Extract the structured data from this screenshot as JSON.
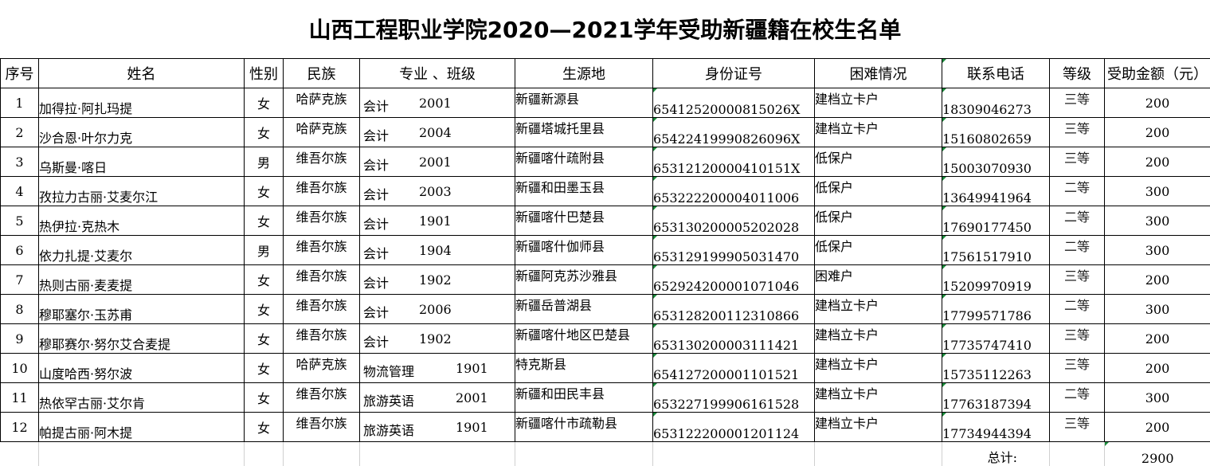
{
  "title": "山西工程职业学院2020—2021学年受助新疆籍在校生名单",
  "headers": {
    "seq": "序号",
    "name": "姓名",
    "gender": "性别",
    "ethnic": "民族",
    "major": "专业 、班级",
    "origin": "生源地",
    "id": "身份证号",
    "difficulty": "困难情况",
    "phone": "联系电话",
    "grade": "等级",
    "amount": "受助金额（元）"
  },
  "rows": [
    {
      "seq": "1",
      "name": "加得拉·阿扎玛提",
      "gender": "女",
      "ethnic": "哈萨克族",
      "major": "会计",
      "cls": "2001",
      "origin": "新疆新源县",
      "id": "654125200008150​26X",
      "difficulty": "建档立卡户",
      "phone": "18309046273",
      "grade": "三等",
      "amount": "200"
    },
    {
      "seq": "2",
      "name": "沙合恩·叶尔力克",
      "gender": "女",
      "ethnic": "哈萨克族",
      "major": "会计",
      "cls": "2004",
      "origin": "新疆塔城托里县",
      "id": "65422419990826096X",
      "difficulty": "建档立卡户",
      "phone": "15160802659",
      "grade": "三等",
      "amount": "200"
    },
    {
      "seq": "3",
      "name": "乌斯曼·喀日",
      "gender": "男",
      "ethnic": "维吾尔族",
      "major": "会计",
      "cls": "2001",
      "origin": "新疆喀什疏附县",
      "id": "65312120000410151X",
      "difficulty": "低保户",
      "phone": "15003070930",
      "grade": "三等",
      "amount": "200"
    },
    {
      "seq": "4",
      "name": "孜拉力古丽·艾麦尔江",
      "gender": "女",
      "ethnic": "维吾尔族",
      "major": "会计",
      "cls": "2003",
      "origin": "新疆和田墨玉县",
      "id": "653222200004011006",
      "difficulty": "低保户",
      "phone": "13649941964",
      "grade": "二等",
      "amount": "300"
    },
    {
      "seq": "5",
      "name": "热伊拉·克热木",
      "gender": "女",
      "ethnic": "维吾尔族",
      "major": "会计",
      "cls": "1901",
      "origin": "新疆喀什巴楚县",
      "id": "653130200005202028",
      "difficulty": "低保户",
      "phone": "17690177450",
      "grade": "二等",
      "amount": "300"
    },
    {
      "seq": "6",
      "name": "依力扎提·艾麦尔",
      "gender": "男",
      "ethnic": "维吾尔族",
      "major": "会计",
      "cls": "1904",
      "origin": "新疆喀什伽师县",
      "id": "653129199905031470",
      "difficulty": "低保户",
      "phone": "17561517910",
      "grade": "二等",
      "amount": "300"
    },
    {
      "seq": "7",
      "name": "热则古丽·麦麦提",
      "gender": "女",
      "ethnic": "维吾尔族",
      "major": "会计",
      "cls": "1902",
      "origin": "新疆阿克苏沙雅县",
      "id": "652924200001071046",
      "difficulty": "困难户",
      "phone": "15209970919",
      "grade": "三等",
      "amount": "200"
    },
    {
      "seq": "8",
      "name": "穆耶塞尔·玉苏甫",
      "gender": "女",
      "ethnic": "维吾尔族",
      "major": "会计",
      "cls": "2006",
      "origin": "新疆岳普湖县",
      "id": "653128200112310866",
      "difficulty": "建档立卡户",
      "phone": "17799571786",
      "grade": "二等",
      "amount": "300"
    },
    {
      "seq": "9",
      "name": "穆耶赛尔·努尔艾合麦提",
      "gender": "女",
      "ethnic": "维吾尔族",
      "major": "会计",
      "cls": "1902",
      "origin": "新疆喀什地区巴楚县",
      "id": "653130200003111421",
      "difficulty": "建档立卡户",
      "phone": "17735747410",
      "grade": "三等",
      "amount": "200"
    },
    {
      "seq": "10",
      "name": "山度哈西·努尔波",
      "gender": "女",
      "ethnic": "哈萨克族",
      "major": "物流管理",
      "cls": "1901",
      "origin": "特克斯县",
      "id": "654127200001101521",
      "difficulty": "建档立卡户",
      "phone": "15735112263",
      "grade": "三等",
      "amount": "200"
    },
    {
      "seq": "11",
      "name": "热依罕古丽·艾尔肯",
      "gender": "女",
      "ethnic": "维吾尔族",
      "major": "旅游英语",
      "cls": "2001",
      "origin": "新疆和田民丰县",
      "id": "653227199906161528",
      "difficulty": "建档立卡户",
      "phone": "17763187394",
      "grade": "二等",
      "amount": "300"
    },
    {
      "seq": "12",
      "name": "帕提古丽·阿木提",
      "gender": "女",
      "ethnic": "维吾尔族",
      "major": "旅游英语",
      "cls": "1901",
      "origin": "新疆喀什市疏勒县",
      "id": "653122200001201124",
      "difficulty": "建档立卡户",
      "phone": "17734944394",
      "grade": "三等",
      "amount": "200"
    }
  ],
  "footer": {
    "total_label": "总计:",
    "total_value": "2900"
  }
}
